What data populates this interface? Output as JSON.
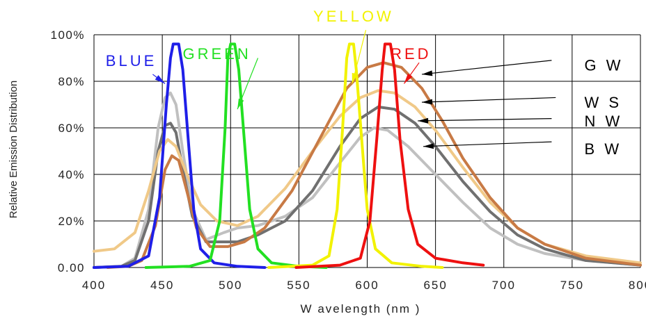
{
  "chart_data": {
    "type": "line",
    "xlabel": "W avelength (nm )",
    "ylabel": "Relative Emission Distribution",
    "xlim": [
      400,
      800
    ],
    "ylim": [
      0,
      100
    ],
    "grid": true,
    "x_ticks": [
      {
        "value": 400,
        "label": "400"
      },
      {
        "value": 450,
        "label": "450"
      },
      {
        "value": 500,
        "label": "500"
      },
      {
        "value": 550,
        "label": "550"
      },
      {
        "value": 600,
        "label": "600"
      },
      {
        "value": 650,
        "label": "650"
      },
      {
        "value": 700,
        "label": "700"
      },
      {
        "value": 750,
        "label": "750"
      },
      {
        "value": 800,
        "label": "800"
      }
    ],
    "y_ticks": [
      {
        "value": 0,
        "label": "0.00"
      },
      {
        "value": 20,
        "label": "20%"
      },
      {
        "value": 40,
        "label": "40%"
      },
      {
        "value": 60,
        "label": "60%"
      },
      {
        "value": 80,
        "label": "80%"
      },
      {
        "value": 100,
        "label": "100%"
      }
    ],
    "series": [
      {
        "name": "BW",
        "color": "#c0c0c0",
        "points": [
          [
            400,
            0
          ],
          [
            420,
            0.5
          ],
          [
            430,
            4
          ],
          [
            440,
            25
          ],
          [
            447,
            60
          ],
          [
            452,
            73
          ],
          [
            456,
            75
          ],
          [
            460,
            70
          ],
          [
            465,
            50
          ],
          [
            472,
            25
          ],
          [
            482,
            12
          ],
          [
            495,
            15
          ],
          [
            505,
            17
          ],
          [
            520,
            18
          ],
          [
            540,
            22
          ],
          [
            560,
            30
          ],
          [
            580,
            45
          ],
          [
            595,
            56
          ],
          [
            605,
            60
          ],
          [
            615,
            59
          ],
          [
            630,
            52
          ],
          [
            650,
            40
          ],
          [
            670,
            28
          ],
          [
            690,
            17
          ],
          [
            710,
            10
          ],
          [
            730,
            6
          ],
          [
            760,
            3
          ],
          [
            800,
            1
          ]
        ]
      },
      {
        "name": "NW",
        "color": "#707070",
        "points": [
          [
            400,
            0
          ],
          [
            420,
            0.5
          ],
          [
            430,
            3
          ],
          [
            440,
            20
          ],
          [
            447,
            50
          ],
          [
            452,
            61
          ],
          [
            456,
            62
          ],
          [
            460,
            58
          ],
          [
            465,
            42
          ],
          [
            472,
            22
          ],
          [
            482,
            11
          ],
          [
            495,
            11
          ],
          [
            505,
            11
          ],
          [
            520,
            14
          ],
          [
            540,
            20
          ],
          [
            560,
            33
          ],
          [
            580,
            52
          ],
          [
            595,
            64
          ],
          [
            608,
            69
          ],
          [
            620,
            68
          ],
          [
            635,
            62
          ],
          [
            650,
            52
          ],
          [
            670,
            37
          ],
          [
            690,
            24
          ],
          [
            710,
            14
          ],
          [
            730,
            8
          ],
          [
            760,
            3
          ],
          [
            800,
            1
          ]
        ]
      },
      {
        "name": "WS",
        "color": "#f0c988",
        "points": [
          [
            400,
            7
          ],
          [
            415,
            8
          ],
          [
            430,
            15
          ],
          [
            440,
            33
          ],
          [
            448,
            50
          ],
          [
            454,
            55
          ],
          [
            460,
            52
          ],
          [
            468,
            40
          ],
          [
            478,
            27
          ],
          [
            490,
            20
          ],
          [
            505,
            18
          ],
          [
            520,
            22
          ],
          [
            540,
            34
          ],
          [
            560,
            50
          ],
          [
            580,
            65
          ],
          [
            595,
            73
          ],
          [
            608,
            76
          ],
          [
            620,
            75
          ],
          [
            635,
            69
          ],
          [
            650,
            59
          ],
          [
            670,
            43
          ],
          [
            690,
            28
          ],
          [
            710,
            17
          ],
          [
            730,
            10
          ],
          [
            760,
            5
          ],
          [
            800,
            2
          ]
        ]
      },
      {
        "name": "GW",
        "color": "#c87a45",
        "points": [
          [
            410,
            0
          ],
          [
            425,
            0.5
          ],
          [
            435,
            3
          ],
          [
            445,
            18
          ],
          [
            452,
            42
          ],
          [
            457,
            48
          ],
          [
            462,
            46
          ],
          [
            467,
            35
          ],
          [
            475,
            17
          ],
          [
            485,
            9
          ],
          [
            498,
            9
          ],
          [
            510,
            11
          ],
          [
            525,
            17
          ],
          [
            545,
            33
          ],
          [
            565,
            55
          ],
          [
            585,
            77
          ],
          [
            600,
            86
          ],
          [
            612,
            88
          ],
          [
            625,
            86
          ],
          [
            640,
            77
          ],
          [
            655,
            63
          ],
          [
            670,
            47
          ],
          [
            690,
            30
          ],
          [
            710,
            17
          ],
          [
            730,
            10
          ],
          [
            760,
            4
          ],
          [
            800,
            1
          ]
        ]
      },
      {
        "name": "BLUE",
        "color": "#1f1fe8",
        "points": [
          [
            400,
            0
          ],
          [
            425,
            0.5
          ],
          [
            440,
            5
          ],
          [
            448,
            30
          ],
          [
            453,
            70
          ],
          [
            456,
            90
          ],
          [
            458,
            96
          ],
          [
            462,
            96
          ],
          [
            465,
            85
          ],
          [
            469,
            55
          ],
          [
            473,
            25
          ],
          [
            478,
            8
          ],
          [
            488,
            2
          ],
          [
            505,
            0.5
          ],
          [
            525,
            0
          ]
        ]
      },
      {
        "name": "GREEN",
        "color": "#22e022",
        "points": [
          [
            438,
            0
          ],
          [
            470,
            0.5
          ],
          [
            485,
            3
          ],
          [
            492,
            20
          ],
          [
            496,
            60
          ],
          [
            498,
            90
          ],
          [
            500,
            96
          ],
          [
            503,
            96
          ],
          [
            506,
            85
          ],
          [
            510,
            55
          ],
          [
            514,
            25
          ],
          [
            520,
            8
          ],
          [
            530,
            2
          ],
          [
            550,
            0.5
          ],
          [
            570,
            0
          ]
        ]
      },
      {
        "name": "YELLOW",
        "color": "#f2f200",
        "points": [
          [
            528,
            0
          ],
          [
            560,
            1
          ],
          [
            572,
            5
          ],
          [
            578,
            25
          ],
          [
            582,
            60
          ],
          [
            585,
            90
          ],
          [
            587,
            96
          ],
          [
            590,
            96
          ],
          [
            592,
            85
          ],
          [
            596,
            55
          ],
          [
            600,
            25
          ],
          [
            606,
            8
          ],
          [
            618,
            2
          ],
          [
            640,
            0.5
          ],
          [
            655,
            0
          ]
        ]
      },
      {
        "name": "RED",
        "color": "#ee1010",
        "points": [
          [
            548,
            0
          ],
          [
            580,
            1
          ],
          [
            595,
            4
          ],
          [
            602,
            20
          ],
          [
            607,
            55
          ],
          [
            611,
            85
          ],
          [
            613,
            96
          ],
          [
            617,
            96
          ],
          [
            620,
            85
          ],
          [
            624,
            55
          ],
          [
            630,
            25
          ],
          [
            637,
            10
          ],
          [
            650,
            4
          ],
          [
            670,
            2
          ],
          [
            685,
            1
          ]
        ]
      }
    ],
    "annotations": [
      {
        "text": "BLUE",
        "color": "#1f1fe8",
        "label_x": 446,
        "label_y": 89,
        "label_anchor": "end",
        "arrow_from": [
          443,
          83
        ],
        "arrow_to": [
          452,
          79
        ]
      },
      {
        "text": "GREEN",
        "color": "#22e022",
        "label_x": 490,
        "label_y": 92,
        "label_anchor": "middle",
        "arrow_from": [
          520,
          90
        ],
        "arrow_to": [
          505,
          68
        ]
      },
      {
        "text": "YELLOW",
        "color": "#f2f200",
        "label_x": 590,
        "label_y": 108,
        "label_anchor": "middle",
        "arrow_from": [
          599,
          102
        ],
        "arrow_to": [
          589,
          79
        ]
      },
      {
        "text": "RED",
        "color": "#ee1010",
        "label_x": 632,
        "label_y": 92,
        "label_anchor": "middle",
        "arrow_from": [
          638,
          88
        ],
        "arrow_to": [
          627,
          79
        ]
      },
      {
        "text": "G W",
        "color": "#000000",
        "label_x": 759,
        "label_y": 87,
        "label_anchor": "start",
        "arrow_from": [
          735,
          89
        ],
        "arrow_to": [
          640,
          83
        ]
      },
      {
        "text": "W S",
        "color": "#000000",
        "label_x": 759,
        "label_y": 71,
        "label_anchor": "start",
        "arrow_from": [
          738,
          73
        ],
        "arrow_to": [
          640,
          71
        ]
      },
      {
        "text": "N W",
        "color": "#000000",
        "label_x": 759,
        "label_y": 63,
        "label_anchor": "start",
        "arrow_from": [
          735,
          64
        ],
        "arrow_to": [
          637,
          63
        ]
      },
      {
        "text": "B W",
        "color": "#000000",
        "label_x": 759,
        "label_y": 51,
        "label_anchor": "start",
        "arrow_from": [
          735,
          54
        ],
        "arrow_to": [
          641,
          52
        ]
      }
    ]
  }
}
